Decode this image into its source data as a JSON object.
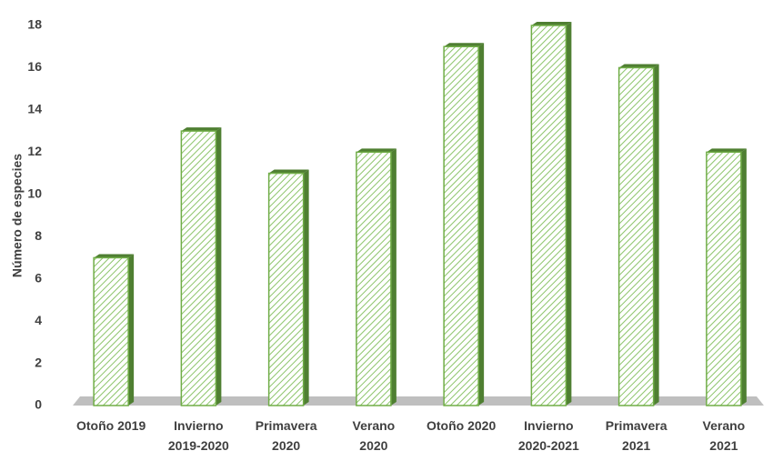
{
  "chart_data": {
    "type": "bar",
    "y_label": "Número de especies",
    "categories": [
      "Otoño 2019",
      "Invierno\n2019-2020",
      "Primavera\n2020",
      "Verano\n2020",
      "Otoño 2020",
      "Invierno\n2020-2021",
      "Primavera\n2021",
      "Verano\n2021"
    ],
    "values": [
      7,
      13,
      11,
      12,
      17,
      18,
      16,
      12
    ],
    "color": "#70ad47",
    "ylim": [
      0,
      18
    ],
    "yticks": [
      0,
      2,
      4,
      6,
      8,
      10,
      12,
      14,
      16,
      18
    ],
    "grid": false
  }
}
